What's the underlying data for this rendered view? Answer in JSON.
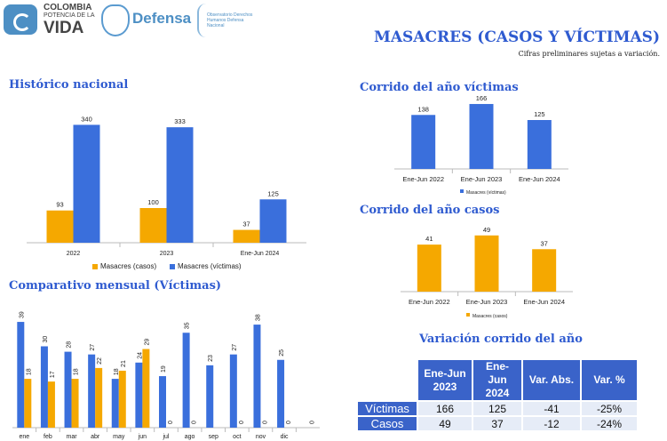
{
  "header": {
    "logo_line1": "COLOMBIA",
    "logo_line2": "POTENCIA DE LA",
    "logo_line3": "VIDA",
    "ministry": "Defensa",
    "observatory": "Observatorio Derechos Humanos Defensa Nacional",
    "title": "MASACRES (CASOS Y VÍCTIMAS)",
    "subtitle": "Cifras preliminares sujetas a variación."
  },
  "colors": {
    "blue": "#3a6fdc",
    "orange": "#f5a800",
    "title": "#2f5bd0"
  },
  "chart_data": [
    {
      "type": "bar",
      "title": "Histórico nacional",
      "categories": [
        "2022",
        "2023",
        "Ene-Jun 2024"
      ],
      "series": [
        {
          "name": "Masacres (casos)",
          "color": "#f5a800",
          "values": [
            93,
            100,
            37
          ]
        },
        {
          "name": "Masacres (víctimas)",
          "color": "#3a6fdc",
          "values": [
            340,
            333,
            125
          ]
        }
      ],
      "legend": "bottom"
    },
    {
      "type": "bar",
      "title": "Corrido del año víctimas",
      "categories": [
        "Ene-Jun 2022",
        "Ene-Jun 2023",
        "Ene-Jun 2024"
      ],
      "series": [
        {
          "name": "Masacres (víctimas)",
          "color": "#3a6fdc",
          "values": [
            138,
            166,
            125
          ]
        }
      ],
      "legend": "bottom"
    },
    {
      "type": "bar",
      "title": "Corrido del año casos",
      "categories": [
        "Ene-Jun 2022",
        "Ene-Jun 2023",
        "Ene-Jun 2024"
      ],
      "series": [
        {
          "name": "Masacres (casos)",
          "color": "#f5a800",
          "values": [
            41,
            49,
            37
          ]
        }
      ],
      "legend": "bottom"
    },
    {
      "type": "bar",
      "title": "Comparativo mensual (Víctimas)",
      "categories": [
        "ene",
        "feb",
        "mar",
        "abr",
        "may",
        "jun",
        "jul",
        "ago",
        "sep",
        "oct",
        "nov",
        "dic",
        ""
      ],
      "series": [
        {
          "color": "#3a6fdc",
          "values": [
            39,
            30,
            28,
            27,
            18,
            24,
            19,
            35,
            23,
            27,
            38,
            25,
            null
          ]
        },
        {
          "color": "#f5a800",
          "values": [
            18,
            17,
            18,
            22,
            21,
            29,
            0,
            0,
            null,
            0,
            0,
            0,
            0
          ]
        }
      ],
      "legend": "none"
    }
  ],
  "table": {
    "title": "Variación corrido del año",
    "headers": [
      "Ene-Jun 2023",
      "Ene-Jun 2024",
      "Var. Abs.",
      "Var. %"
    ],
    "rows": [
      {
        "label": "Víctimas",
        "cells": [
          "166",
          "125",
          "-41",
          "-25%"
        ]
      },
      {
        "label": "Casos",
        "cells": [
          "49",
          "37",
          "-12",
          "-24%"
        ]
      }
    ]
  }
}
